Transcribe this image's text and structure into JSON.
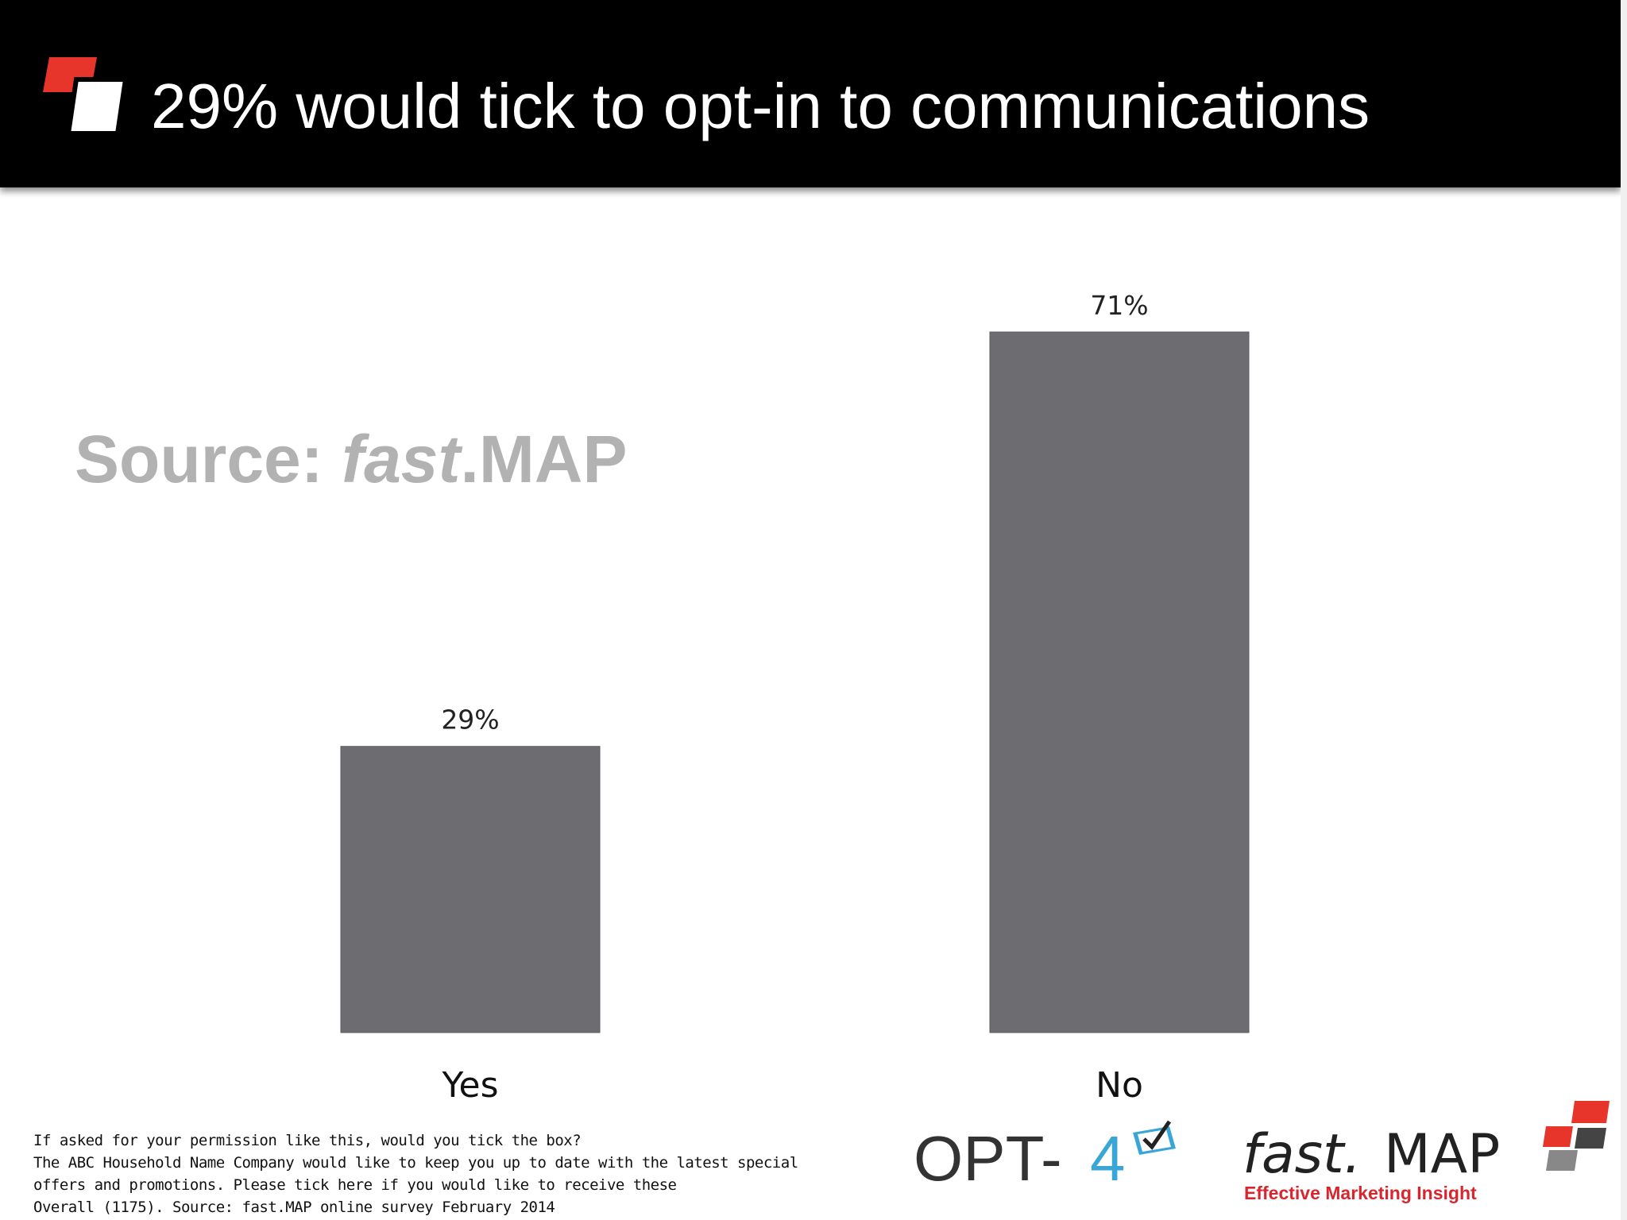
{
  "header": {
    "title": "29% would tick to opt-in to communications"
  },
  "watermark": {
    "prefix": "Source: ",
    "emphasis": "fast",
    "suffix": ".MAP"
  },
  "chart_data": {
    "type": "bar",
    "categories": [
      "Yes",
      "No"
    ],
    "values": [
      29,
      71
    ],
    "data_labels": [
      "29%",
      "71%"
    ],
    "title": "",
    "xlabel": "",
    "ylabel": "",
    "ylim": [
      0,
      71
    ],
    "grid": false,
    "bar_color": "#6d6c70"
  },
  "footnote": {
    "lines": [
      "If asked for your permission like this, would you tick the box?",
      "The ABC Household Name Company would like to keep you up to date with the latest special",
      "offers and promotions.  Please tick here if you would like to receive these",
      "Overall (1175). Source:  fast.MAP online survey February 2014"
    ]
  },
  "logos": {
    "opt4": {
      "text": "OPT-",
      "digit": "4",
      "icon": "checkbox-tick-icon"
    },
    "fastmap": {
      "prefix": "fast.",
      "main": "MAP",
      "tagline": "Effective Marketing Insight"
    }
  },
  "colors": {
    "header_bg": "#000000",
    "accent_red": "#e8352b",
    "opt4_blue": "#3aa6d8",
    "tagline_red": "#d8262e",
    "watermark_grey": "#b2b2b2"
  }
}
